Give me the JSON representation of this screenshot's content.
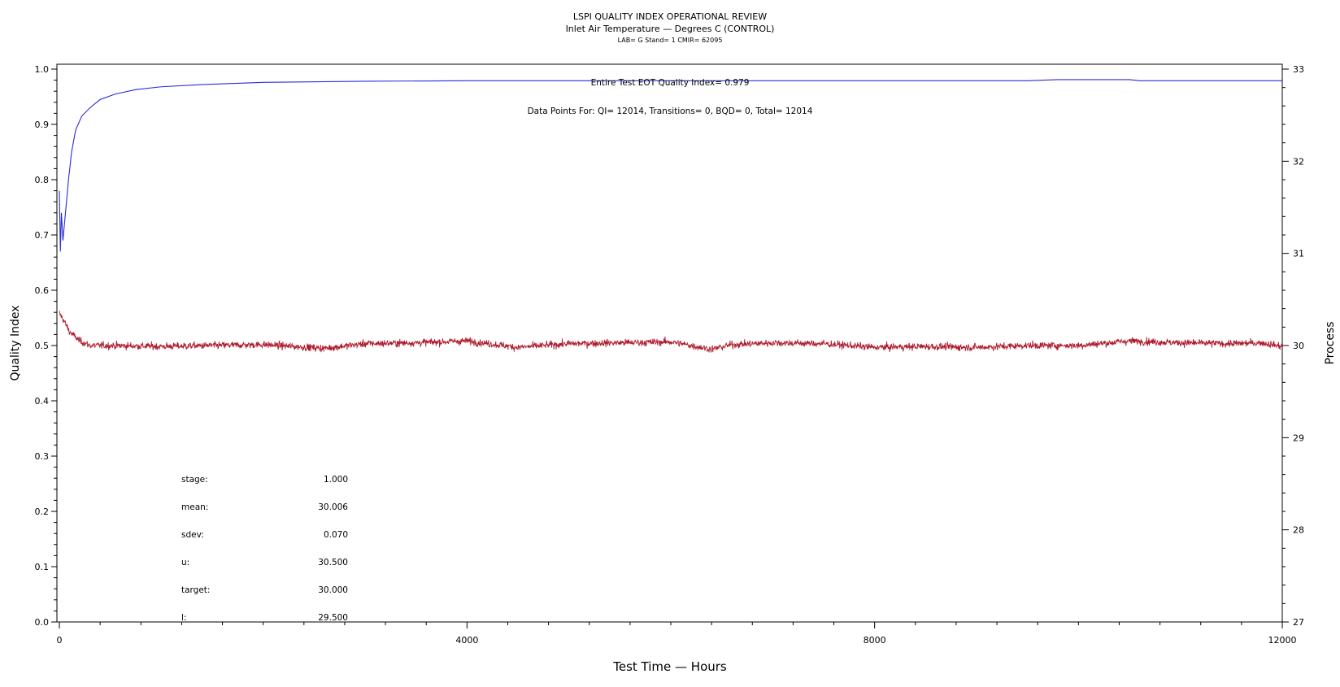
{
  "chart_data": {
    "type": "line",
    "title": "LSPI QUALITY INDEX OPERATIONAL REVIEW",
    "subtitle": "Inlet Air Temperature — Degrees C (CONTROL)",
    "subsubtitle": "LAB= G Stand= 1 CMIR= 62095",
    "xlabel": "Test Time — Hours",
    "ylabel_left": "Quality Index",
    "ylabel_right": "Process",
    "xlim": [
      0,
      12000
    ],
    "ylim_left": [
      0.0,
      1.0
    ],
    "ylim_right": [
      27,
      33
    ],
    "x_tick_labels": [
      "0",
      "4000",
      "8000",
      "12000"
    ],
    "y_left_tick_labels": [
      "0.0",
      "0.1",
      "0.2",
      "0.3",
      "0.4",
      "0.5",
      "0.6",
      "0.7",
      "0.8",
      "0.9",
      "1.0"
    ],
    "y_right_tick_labels": [
      "27",
      "28",
      "29",
      "30",
      "31",
      "32",
      "33"
    ],
    "grid": false,
    "annotations": {
      "eot_quality": "Entire Test EOT Quality Index=   0.979",
      "data_points": "Data Points For: QI= 12014, Transitions=     0, BQD=     0, Total= 12014"
    },
    "stats": [
      {
        "label": "stage:",
        "value": "1.000"
      },
      {
        "label": "mean:",
        "value": "30.006"
      },
      {
        "label": "sdev:",
        "value": "0.070"
      },
      {
        "label": "u:",
        "value": "30.500"
      },
      {
        "label": "target:",
        "value": "30.000"
      },
      {
        "label": "l:",
        "value": "29.500"
      }
    ],
    "series": [
      {
        "axis": "left",
        "color": "#2b2bd6",
        "x": [
          0,
          10,
          20,
          35,
          50,
          70,
          90,
          120,
          160,
          220,
          300,
          400,
          550,
          750,
          1000,
          1400,
          2000,
          3000,
          4000,
          6000,
          8000,
          9500,
          9800,
          10500,
          10600,
          12000
        ],
        "values": [
          0.78,
          0.67,
          0.74,
          0.69,
          0.72,
          0.76,
          0.8,
          0.85,
          0.89,
          0.915,
          0.93,
          0.945,
          0.955,
          0.963,
          0.968,
          0.972,
          0.976,
          0.978,
          0.979,
          0.979,
          0.979,
          0.979,
          0.981,
          0.981,
          0.979,
          0.979
        ]
      },
      {
        "axis": "right",
        "color": "#b01c2e",
        "start_x": 0,
        "end_x": 12000,
        "mean": 30.006,
        "sdev": 0.07,
        "x": [
          0,
          30,
          100,
          200,
          300,
          500,
          1000,
          1500,
          2000,
          2600,
          3000,
          3500,
          4000,
          4500,
          5000,
          5500,
          6000,
          6400,
          6600,
          7000,
          7500,
          8000,
          8500,
          9000,
          9500,
          10000,
          10500,
          11000,
          11500,
          11800,
          12000
        ],
        "values": [
          30.35,
          30.3,
          30.15,
          30.05,
          30.0,
          30.0,
          29.99,
          30.0,
          30.01,
          29.97,
          30.02,
          30.03,
          30.05,
          29.98,
          30.02,
          30.03,
          30.04,
          29.96,
          30.01,
          30.03,
          30.02,
          29.98,
          29.99,
          29.98,
          30.0,
          30.0,
          30.05,
          30.03,
          30.02,
          30.03,
          29.99
        ]
      }
    ]
  }
}
